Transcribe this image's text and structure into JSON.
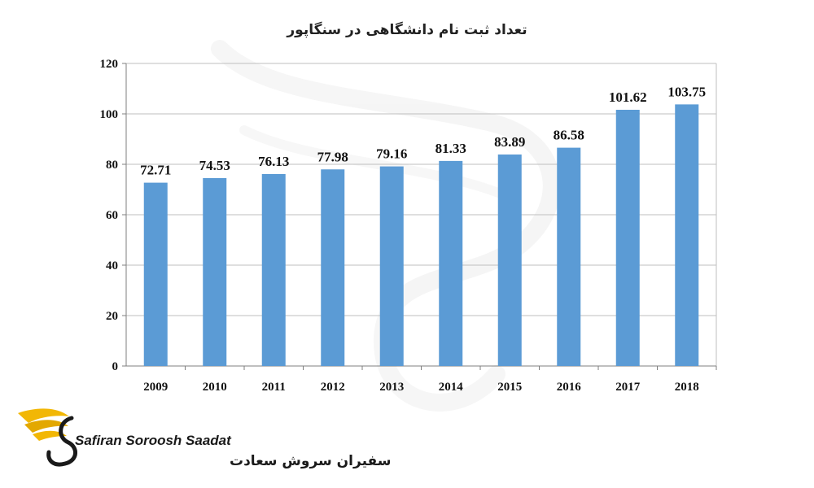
{
  "chart_data": {
    "type": "bar",
    "title": "تعداد ثبت نام دانشگاهی در سنگاپور",
    "xlabel": "",
    "ylabel": "",
    "categories": [
      "2009",
      "2010",
      "2011",
      "2012",
      "2013",
      "2014",
      "2015",
      "2016",
      "2017",
      "2018"
    ],
    "values": [
      72.71,
      74.53,
      76.13,
      77.98,
      79.16,
      81.33,
      83.89,
      86.58,
      101.62,
      103.75
    ],
    "value_labels": [
      "72.71",
      "74.53",
      "76.13",
      "77.98",
      "79.16",
      "81.33",
      "83.89",
      "86.58",
      "101.62",
      "103.75"
    ],
    "ylim": [
      0,
      120
    ],
    "yticks": [
      "0",
      "20",
      "40",
      "60",
      "80",
      "100",
      "120"
    ],
    "grid": true,
    "legend": "none",
    "bar_color": "#5b9bd5"
  },
  "brand": {
    "name_en": "Safiran Soroosh Saadat",
    "name_fa": "سفیران سروش سعادت",
    "logo_icon": "winged-s-logo-icon",
    "colors": {
      "wing": "#f2b705",
      "text": "#1a1a1a"
    }
  }
}
